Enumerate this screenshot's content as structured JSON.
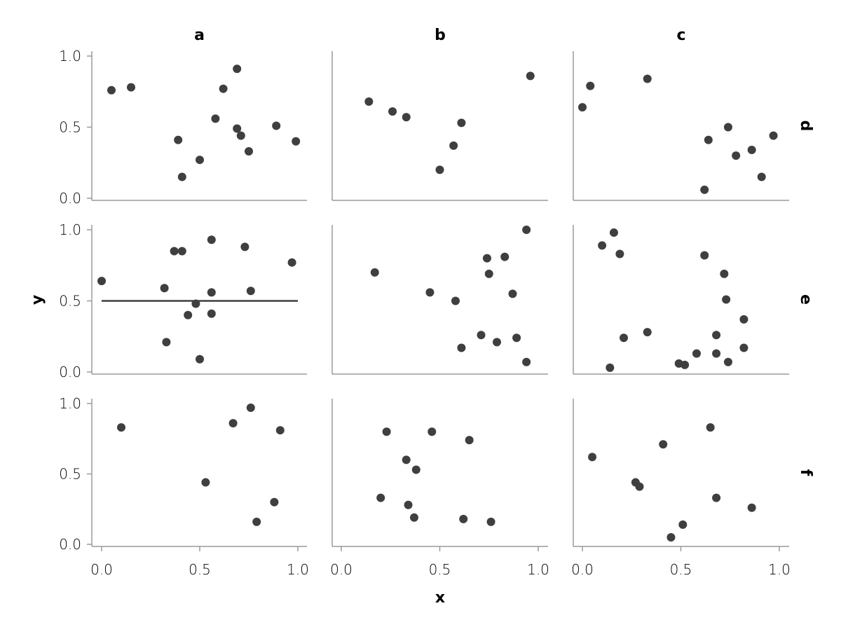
{
  "chart_data": {
    "type": "scatter",
    "xlabel": "x",
    "ylabel": "y",
    "xlim": [
      0.0,
      1.0
    ],
    "ylim": [
      0.0,
      1.0
    ],
    "xticks": [
      "0.0",
      "0.5",
      "1.0"
    ],
    "yticks": [
      "0.0",
      "0.5",
      "1.0"
    ],
    "columns": [
      "a",
      "b",
      "c"
    ],
    "rows": [
      "d",
      "e",
      "f"
    ],
    "grid": false,
    "color": "#3f3f3f",
    "axis_color": "#9a9a9a",
    "reference_line": {
      "panel": "a-e",
      "y": 0.5,
      "x_from": 0.0,
      "x_to": 1.0
    },
    "panels": [
      {
        "col": "a",
        "row": "d",
        "points": [
          [
            0.05,
            0.76
          ],
          [
            0.15,
            0.78
          ],
          [
            0.39,
            0.41
          ],
          [
            0.41,
            0.15
          ],
          [
            0.5,
            0.27
          ],
          [
            0.58,
            0.56
          ],
          [
            0.62,
            0.77
          ],
          [
            0.69,
            0.91
          ],
          [
            0.69,
            0.49
          ],
          [
            0.71,
            0.44
          ],
          [
            0.75,
            0.33
          ],
          [
            0.89,
            0.51
          ],
          [
            0.99,
            0.4
          ]
        ]
      },
      {
        "col": "b",
        "row": "d",
        "points": [
          [
            0.14,
            0.68
          ],
          [
            0.26,
            0.61
          ],
          [
            0.33,
            0.57
          ],
          [
            0.5,
            0.2
          ],
          [
            0.57,
            0.37
          ],
          [
            0.61,
            0.53
          ],
          [
            0.96,
            0.86
          ]
        ]
      },
      {
        "col": "c",
        "row": "d",
        "points": [
          [
            0.0,
            0.64
          ],
          [
            0.04,
            0.79
          ],
          [
            0.33,
            0.84
          ],
          [
            0.62,
            0.06
          ],
          [
            0.64,
            0.41
          ],
          [
            0.74,
            0.5
          ],
          [
            0.78,
            0.3
          ],
          [
            0.86,
            0.34
          ],
          [
            0.91,
            0.15
          ],
          [
            0.97,
            0.44
          ]
        ]
      },
      {
        "col": "a",
        "row": "e",
        "points": [
          [
            0.0,
            0.64
          ],
          [
            0.32,
            0.59
          ],
          [
            0.33,
            0.21
          ],
          [
            0.37,
            0.85
          ],
          [
            0.41,
            0.85
          ],
          [
            0.44,
            0.4
          ],
          [
            0.48,
            0.48
          ],
          [
            0.5,
            0.09
          ],
          [
            0.56,
            0.93
          ],
          [
            0.56,
            0.56
          ],
          [
            0.56,
            0.41
          ],
          [
            0.73,
            0.88
          ],
          [
            0.76,
            0.57
          ],
          [
            0.97,
            0.77
          ]
        ]
      },
      {
        "col": "b",
        "row": "e",
        "points": [
          [
            0.17,
            0.7
          ],
          [
            0.45,
            0.56
          ],
          [
            0.58,
            0.5
          ],
          [
            0.61,
            0.17
          ],
          [
            0.71,
            0.26
          ],
          [
            0.74,
            0.8
          ],
          [
            0.75,
            0.69
          ],
          [
            0.79,
            0.21
          ],
          [
            0.83,
            0.81
          ],
          [
            0.87,
            0.55
          ],
          [
            0.89,
            0.24
          ],
          [
            0.94,
            1.0
          ],
          [
            0.94,
            0.07
          ]
        ]
      },
      {
        "col": "c",
        "row": "e",
        "points": [
          [
            0.1,
            0.89
          ],
          [
            0.14,
            0.03
          ],
          [
            0.16,
            0.98
          ],
          [
            0.19,
            0.83
          ],
          [
            0.21,
            0.24
          ],
          [
            0.33,
            0.28
          ],
          [
            0.49,
            0.06
          ],
          [
            0.52,
            0.05
          ],
          [
            0.58,
            0.13
          ],
          [
            0.62,
            0.82
          ],
          [
            0.68,
            0.26
          ],
          [
            0.68,
            0.13
          ],
          [
            0.72,
            0.69
          ],
          [
            0.73,
            0.51
          ],
          [
            0.74,
            0.07
          ],
          [
            0.82,
            0.37
          ],
          [
            0.82,
            0.17
          ]
        ]
      },
      {
        "col": "a",
        "row": "f",
        "points": [
          [
            0.1,
            0.83
          ],
          [
            0.53,
            0.44
          ],
          [
            0.67,
            0.86
          ],
          [
            0.76,
            0.97
          ],
          [
            0.79,
            0.16
          ],
          [
            0.88,
            0.3
          ],
          [
            0.91,
            0.81
          ]
        ]
      },
      {
        "col": "b",
        "row": "f",
        "points": [
          [
            0.2,
            0.33
          ],
          [
            0.23,
            0.8
          ],
          [
            0.33,
            0.6
          ],
          [
            0.34,
            0.28
          ],
          [
            0.37,
            0.19
          ],
          [
            0.38,
            0.53
          ],
          [
            0.46,
            0.8
          ],
          [
            0.62,
            0.18
          ],
          [
            0.65,
            0.74
          ],
          [
            0.76,
            0.16
          ]
        ]
      },
      {
        "col": "c",
        "row": "f",
        "points": [
          [
            0.05,
            0.62
          ],
          [
            0.27,
            0.44
          ],
          [
            0.29,
            0.41
          ],
          [
            0.41,
            0.71
          ],
          [
            0.45,
            0.05
          ],
          [
            0.51,
            0.14
          ],
          [
            0.65,
            0.83
          ],
          [
            0.68,
            0.33
          ],
          [
            0.86,
            0.26
          ]
        ]
      }
    ]
  }
}
